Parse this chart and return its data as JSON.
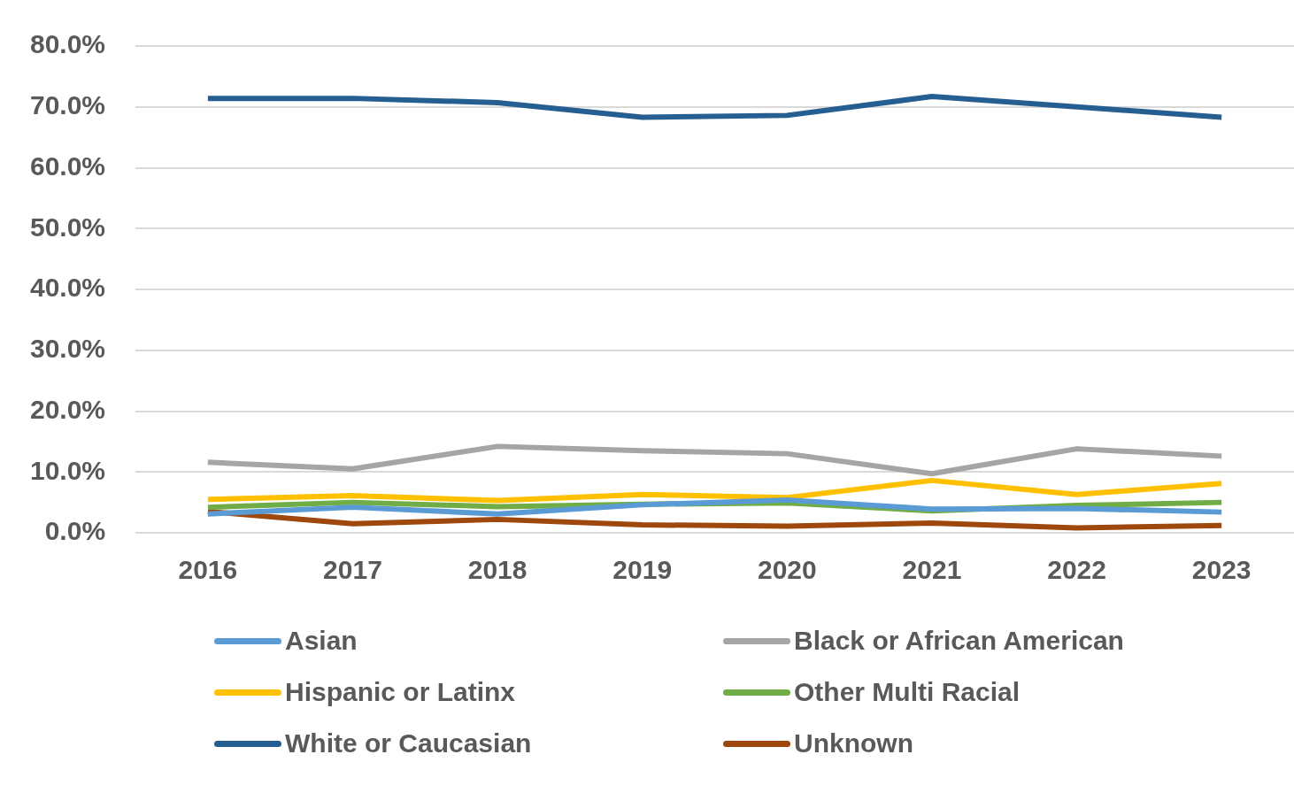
{
  "chart_data": {
    "type": "line",
    "categories": [
      "2016",
      "2017",
      "2018",
      "2019",
      "2020",
      "2021",
      "2022",
      "2023"
    ],
    "series": [
      {
        "name": "Asian",
        "color": "#5b9bd5",
        "values": [
          3.1,
          4.2,
          3.1,
          4.6,
          5.4,
          3.9,
          4.0,
          3.4
        ]
      },
      {
        "name": "Black or African American",
        "color": "#a5a5a5",
        "values": [
          11.6,
          10.5,
          14.2,
          13.5,
          13.0,
          9.7,
          13.8,
          12.6
        ]
      },
      {
        "name": "Hispanic or Latinx",
        "color": "#ffc000",
        "values": [
          5.5,
          6.1,
          5.3,
          6.3,
          5.8,
          8.6,
          6.3,
          8.1
        ]
      },
      {
        "name": "Other Multi Racial",
        "color": "#70ad47",
        "values": [
          4.2,
          5.0,
          4.3,
          4.7,
          4.9,
          3.6,
          4.5,
          5.0
        ]
      },
      {
        "name": "White or Caucasian",
        "color": "#255e91",
        "values": [
          71.4,
          71.4,
          70.7,
          68.3,
          68.6,
          71.7,
          70.0,
          68.3
        ]
      },
      {
        "name": "Unknown",
        "color": "#9e480e",
        "values": [
          3.5,
          1.5,
          2.2,
          1.3,
          1.1,
          1.6,
          0.8,
          1.2
        ]
      }
    ],
    "ylim": [
      0,
      80
    ],
    "yticks": [
      {
        "value": 0,
        "label": "0.0%"
      },
      {
        "value": 10,
        "label": "10.0%"
      },
      {
        "value": 20,
        "label": "20.0%"
      },
      {
        "value": 30,
        "label": "30.0%"
      },
      {
        "value": 40,
        "label": "40.0%"
      },
      {
        "value": 50,
        "label": "50.0%"
      },
      {
        "value": 60,
        "label": "60.0%"
      },
      {
        "value": 70,
        "label": "70.0%"
      },
      {
        "value": 80,
        "label": "80.0%"
      }
    ],
    "grid": "y",
    "legend": "bottom",
    "marker": "none",
    "line_style": "solid"
  }
}
